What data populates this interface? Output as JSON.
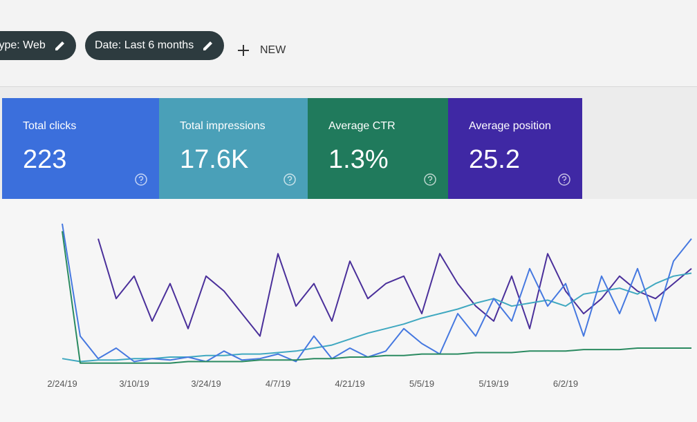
{
  "filters": [
    {
      "label": "type: Web"
    },
    {
      "label": "Date: Last 6 months"
    }
  ],
  "new_button": {
    "label": "NEW"
  },
  "cards": [
    {
      "label": "Total clicks",
      "value": "223",
      "color": "#3b6fdc"
    },
    {
      "label": "Total impressions",
      "value": "17.6K",
      "color": "#4aa0b8"
    },
    {
      "label": "Average CTR",
      "value": "1.3%",
      "color": "#207a5c"
    },
    {
      "label": "Average position",
      "value": "25.2",
      "color": "#3f28a4"
    }
  ],
  "chart_data": {
    "type": "line",
    "categories": [
      "2/24/19",
      null,
      null,
      null,
      "3/10/19",
      null,
      null,
      null,
      "3/24/19",
      null,
      null,
      null,
      "4/7/19",
      null,
      null,
      null,
      "4/21/19",
      null,
      null,
      null,
      "5/5/19",
      null,
      null,
      null,
      "5/19/19",
      null,
      null,
      null,
      "6/2/19",
      null,
      null,
      null,
      null,
      null,
      null,
      null
    ],
    "ylim": [
      0,
      100
    ],
    "series": [
      {
        "name": "Average position",
        "color": "#4a2f9a",
        "values": [
          null,
          null,
          85,
          45,
          60,
          30,
          55,
          25,
          60,
          50,
          35,
          20,
          75,
          40,
          55,
          30,
          70,
          45,
          55,
          60,
          35,
          75,
          55,
          40,
          30,
          60,
          25,
          75,
          50,
          35,
          45,
          60,
          50,
          45,
          55,
          65
        ]
      },
      {
        "name": "Total impressions",
        "color": "#3fa8c0",
        "values": [
          5,
          3,
          4,
          4,
          5,
          5,
          6,
          6,
          7,
          7,
          8,
          8,
          9,
          10,
          12,
          14,
          18,
          22,
          25,
          28,
          32,
          35,
          38,
          42,
          45,
          40,
          42,
          44,
          40,
          48,
          50,
          52,
          48,
          55,
          60,
          62
        ]
      },
      {
        "name": "Total clicks",
        "color": "#4578e0",
        "values": [
          95,
          20,
          5,
          12,
          3,
          5,
          4,
          6,
          3,
          10,
          4,
          5,
          8,
          3,
          20,
          5,
          12,
          6,
          10,
          25,
          15,
          8,
          35,
          20,
          45,
          30,
          65,
          40,
          55,
          20,
          60,
          35,
          65,
          30,
          70,
          85
        ]
      },
      {
        "name": "Average CTR",
        "color": "#2a8a60",
        "values": [
          90,
          2,
          2,
          2,
          2,
          2,
          2,
          3,
          3,
          3,
          3,
          4,
          4,
          4,
          5,
          5,
          6,
          6,
          7,
          7,
          8,
          8,
          8,
          9,
          9,
          9,
          10,
          10,
          10,
          11,
          11,
          11,
          12,
          12,
          12,
          12
        ]
      }
    ]
  }
}
